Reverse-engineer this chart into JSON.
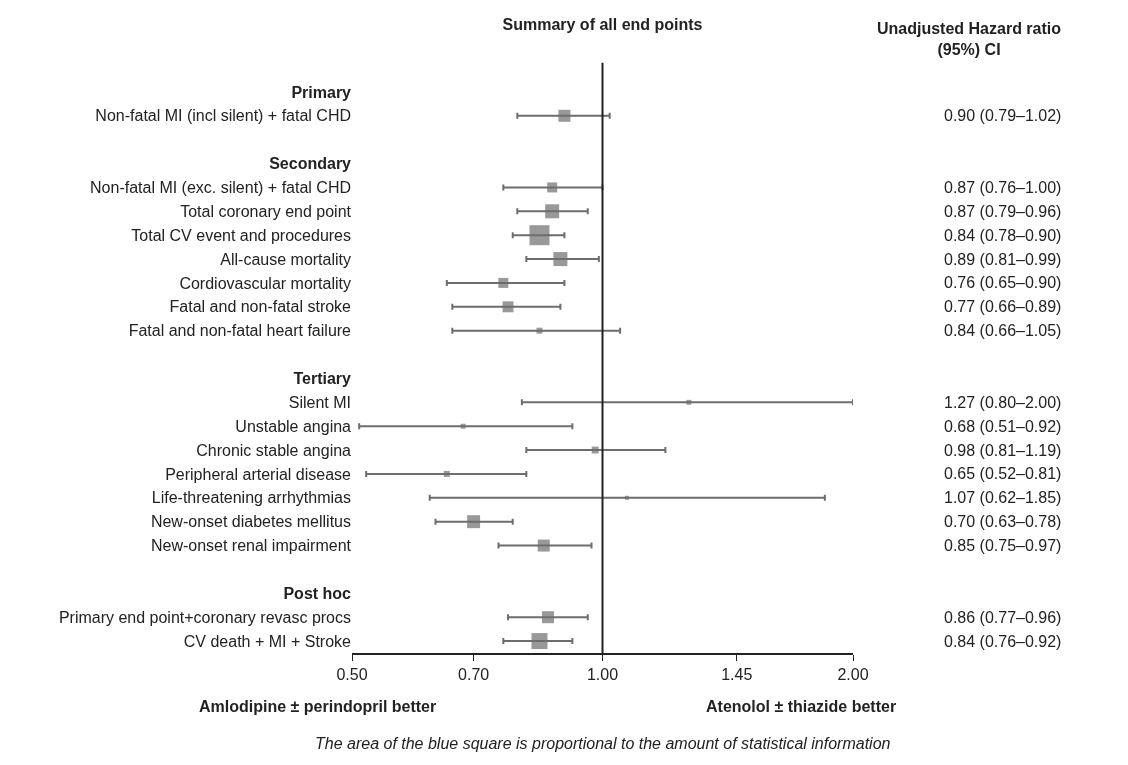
{
  "chart_data": {
    "type": "bubble",
    "title": "Summary of all end points",
    "orientation": "horizontal",
    "categories": [
      "Primary",
      "Non-fatal MI (incl silent) + fatal CHD",
      null,
      "Secondary",
      "Non-fatal MI (exc. silent) + fatal CHD",
      "Total coronary end point",
      "Total CV event and procedures",
      "All-cause mortality",
      "Cordiovascular mortality",
      "Fatal and non-fatal stroke",
      "Fatal and non-fatal heart failure",
      null,
      "Tertiary",
      "Silent MI",
      "Unstable angina",
      "Chronic stable angina",
      "Peripheral arterial disease",
      "Life-threatening arrhythmias",
      "New-onset diabetes mellitus",
      "New-onset renal impairment",
      null,
      "Post hoc",
      "Primary end point+coronary revasc procs",
      "CV death + MI + Stroke"
    ],
    "series": [
      {
        "color": "#6d6d6d",
        "values": [
          null,
          0.9,
          null,
          null,
          0.87,
          0.87,
          0.84,
          0.89,
          0.76,
          0.77,
          0.84,
          null,
          null,
          1.27,
          0.68,
          0.98,
          0.65,
          1.07,
          0.7,
          0.85,
          null,
          null,
          0.86,
          0.84
        ],
        "errors": [
          null,
          [
            0.79,
            1.02
          ],
          null,
          null,
          [
            0.76,
            1.0
          ],
          [
            0.79,
            0.96
          ],
          [
            0.78,
            0.9
          ],
          [
            0.81,
            0.99
          ],
          [
            0.65,
            0.9
          ],
          [
            0.66,
            0.89
          ],
          [
            0.66,
            1.05
          ],
          null,
          null,
          [
            0.8,
            2.0
          ],
          [
            0.51,
            0.92
          ],
          [
            0.81,
            1.19
          ],
          [
            0.52,
            0.81
          ],
          [
            0.62,
            1.85
          ],
          [
            0.63,
            0.78
          ],
          [
            0.75,
            0.97
          ],
          null,
          null,
          [
            0.77,
            0.96
          ],
          [
            0.76,
            0.92
          ]
        ],
        "sizes": [
          null,
          0.36,
          null,
          null,
          0.25,
          0.49,
          1,
          0.49,
          0.25,
          0.3,
          0.09,
          null,
          null,
          0.06,
          0.06,
          0.12,
          0.09,
          0.04,
          0.42,
          0.36,
          null,
          null,
          0.36,
          0.64
        ],
        "value_labels": [
          null,
          "0.90 (0.79–1.02)",
          null,
          null,
          "0.87 (0.76–1.00)",
          "0.87 (0.79–0.96)",
          "0.84 (0.78–0.90)",
          "0.89 (0.81–0.99)",
          "0.76 (0.65–0.90)",
          "0.77 (0.66–0.89)",
          "0.84 (0.66–1.05)",
          null,
          null,
          "1.27 (0.80–2.00)",
          "0.68 (0.51–0.92)",
          "0.98 (0.81–1.19)",
          "0.65 (0.52–0.81)",
          "1.07 (0.62–1.85)",
          "0.70 (0.63–0.78)",
          "0.85 (0.75–0.97)",
          null,
          null,
          "0.86 (0.77–0.96)",
          "0.84 (0.76–0.92)"
        ]
      }
    ],
    "marker": "square",
    "log": "x",
    "xlim": [
      0.5,
      2.0
    ],
    "xticks": [
      {
        "value": 0.5,
        "label": "0.50"
      },
      {
        "value": 0.7,
        "label": "0.70"
      },
      {
        "value": 1.0,
        "label": "1.00"
      },
      {
        "value": 1.45,
        "label": "1.45"
      },
      {
        "value": 2.0,
        "label": "2.00"
      }
    ],
    "ref_lines": [
      {
        "axis": "x",
        "value": 1.0,
        "color": "#222222"
      }
    ],
    "annotations": [
      "Unadjusted Hazard ratio (95%) CI",
      "Amlodipine ± perindopril better",
      "Atenolol ± thiazide better",
      "The area of the blue square is proportional to the amount of statistical information"
    ]
  }
}
